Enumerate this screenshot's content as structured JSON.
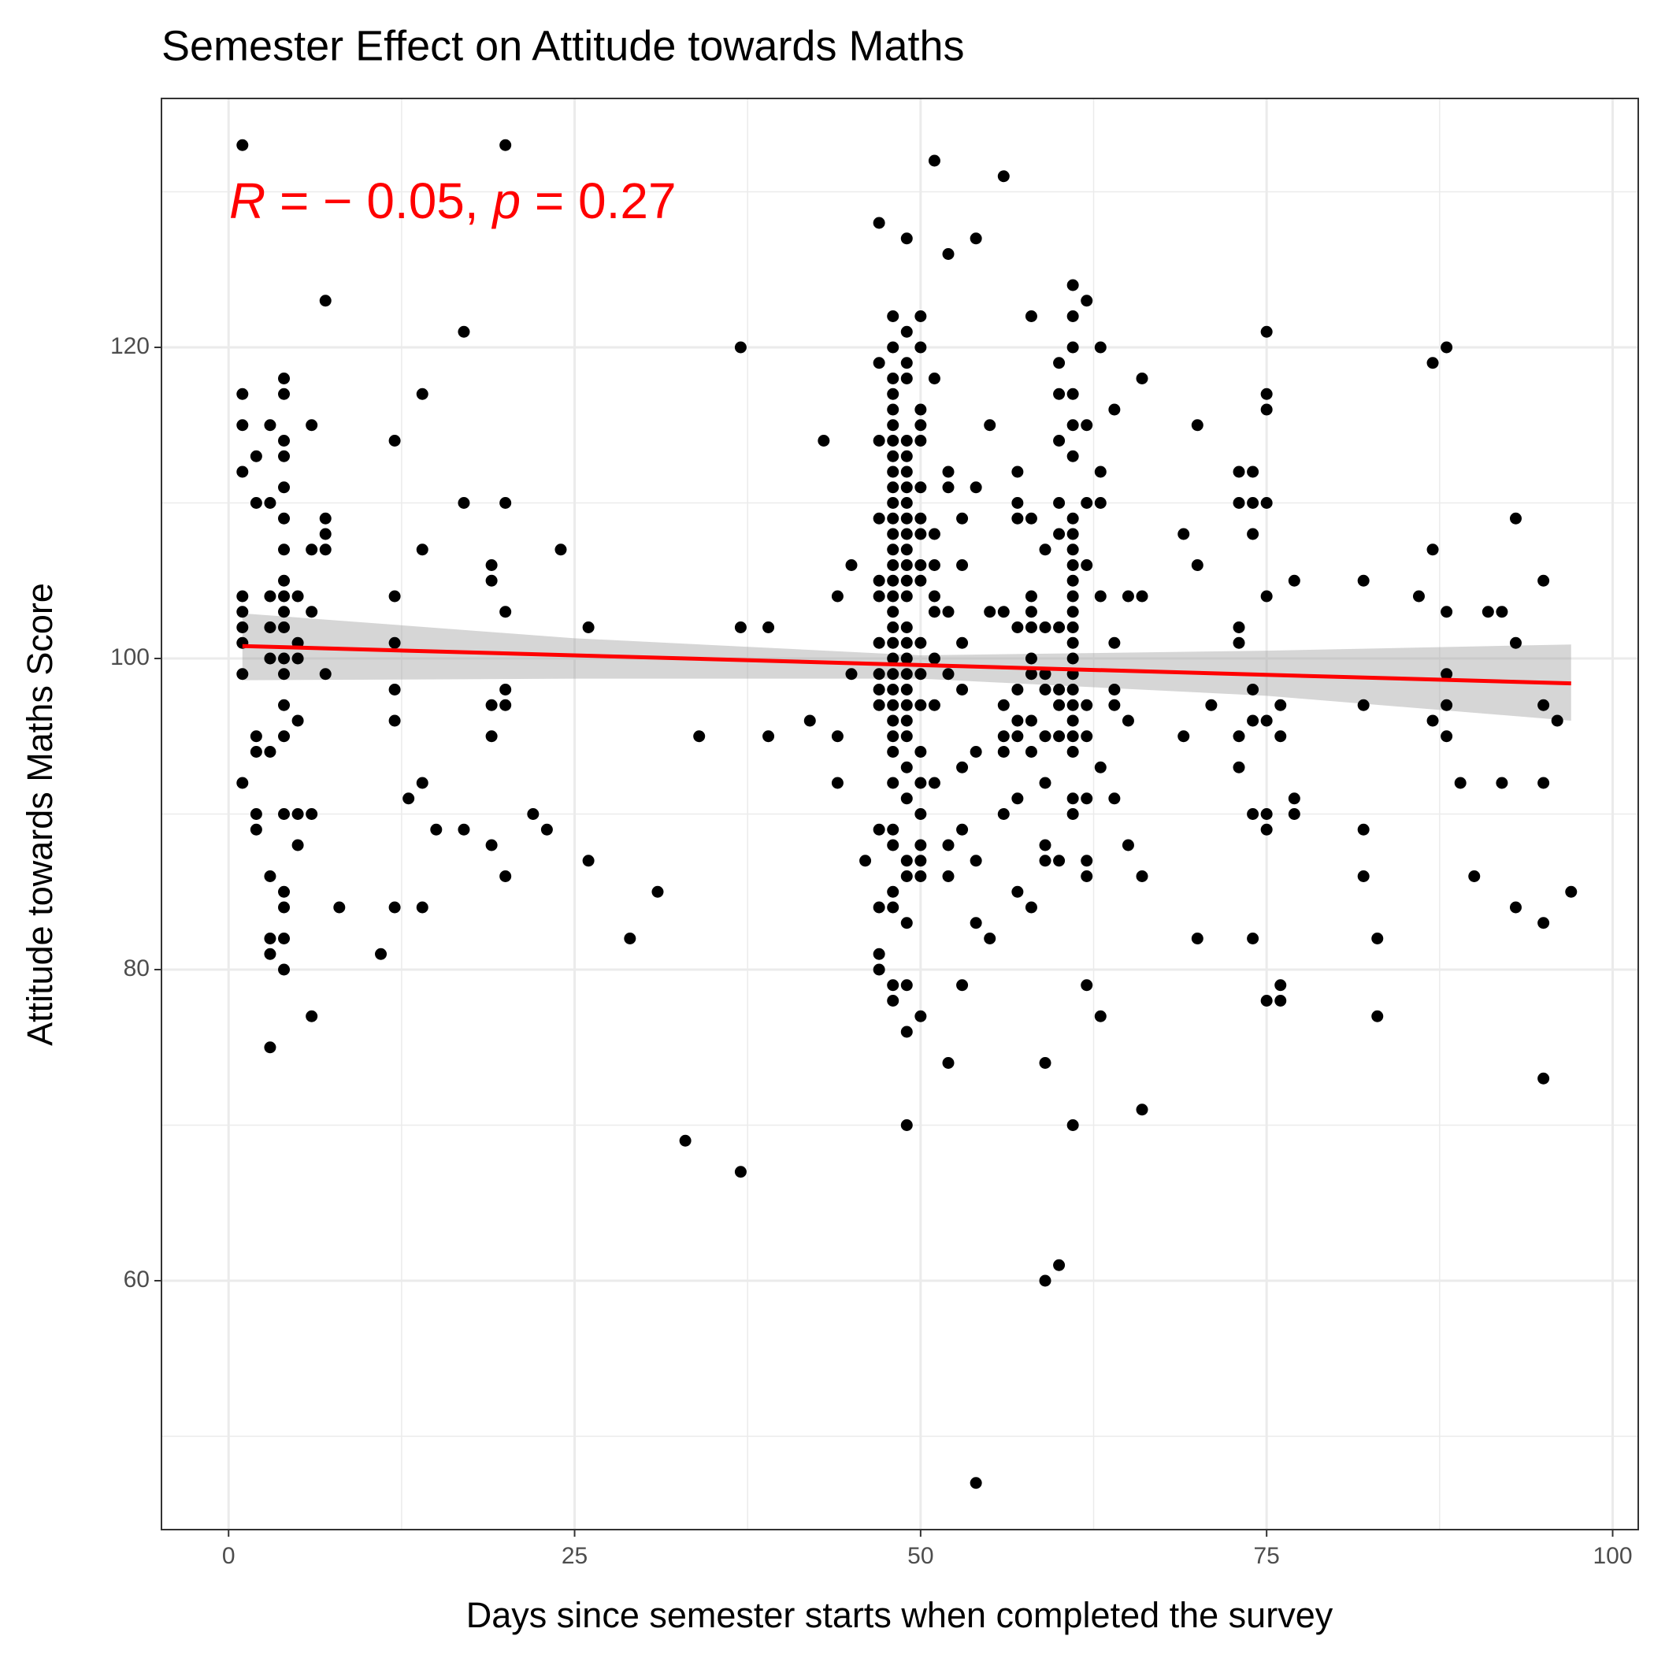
{
  "chart_data": {
    "type": "scatter",
    "title": "Semester Effect on Attitude towards Maths",
    "x_label": "Days since semester starts when completed the survey",
    "y_label": "Attitude towards Maths Score",
    "annotation": [
      {
        "text": "R",
        "italic": true
      },
      {
        "text": " = − 0.05, "
      },
      {
        "text": "p",
        "italic": true
      },
      {
        "text": " = 0.27"
      }
    ],
    "annotation_color": "#ff0000",
    "point_color": "#000000",
    "xlim": [
      -4.85,
      101.85
    ],
    "ylim": [
      44,
      136
    ],
    "xticks": [
      0,
      25,
      50,
      75,
      100
    ],
    "yticks": [
      60,
      80,
      100,
      120
    ],
    "minor_xticks": [
      12.5,
      37.5,
      62.5,
      87.5
    ],
    "minor_yticks": [
      50,
      70,
      90,
      110,
      130
    ],
    "grid": true,
    "fit": {
      "x": [
        1,
        97
      ],
      "y": [
        100.8,
        98.4
      ],
      "color": "#ff0000"
    },
    "band": {
      "x": [
        1,
        25,
        50,
        75,
        97
      ],
      "upper": [
        102.9,
        101.3,
        100.2,
        100.5,
        100.9
      ],
      "lower": [
        98.6,
        98.7,
        98.7,
        97.6,
        96.0
      ],
      "color": "#999999"
    },
    "x": [
      1,
      1,
      1,
      1,
      1,
      1,
      1,
      1,
      1,
      1,
      2,
      2,
      2,
      2,
      2,
      2,
      3,
      3,
      3,
      3,
      3,
      3,
      3,
      3,
      3,
      3,
      4,
      4,
      4,
      4,
      4,
      4,
      4,
      4,
      4,
      4,
      4,
      4,
      4,
      4,
      4,
      4,
      4,
      4,
      4,
      4,
      5,
      5,
      5,
      5,
      5,
      5,
      6,
      6,
      6,
      6,
      6,
      7,
      7,
      7,
      7,
      7,
      8,
      11,
      12,
      12,
      12,
      12,
      12,
      12,
      13,
      14,
      14,
      14,
      14,
      15,
      17,
      17,
      17,
      19,
      19,
      19,
      19,
      19,
      20,
      20,
      20,
      20,
      20,
      20,
      22,
      23,
      24,
      26,
      26,
      29,
      31,
      33,
      34,
      37,
      37,
      37,
      39,
      39,
      42,
      43,
      44,
      44,
      44,
      45,
      45,
      46,
      47,
      47,
      47,
      47,
      47,
      47,
      47,
      47,
      47,
      47,
      47,
      47,
      47,
      47,
      48,
      48,
      48,
      48,
      48,
      48,
      48,
      48,
      48,
      48,
      48,
      48,
      48,
      48,
      48,
      48,
      48,
      48,
      48,
      48,
      48,
      48,
      48,
      48,
      48,
      48,
      48,
      48,
      48,
      48,
      48,
      48,
      48,
      48,
      49,
      49,
      49,
      49,
      49,
      49,
      49,
      49,
      49,
      49,
      49,
      49,
      49,
      49,
      49,
      49,
      49,
      49,
      49,
      49,
      49,
      49,
      49,
      49,
      49,
      49,
      49,
      49,
      49,
      49,
      49,
      50,
      50,
      50,
      50,
      50,
      50,
      50,
      50,
      50,
      50,
      50,
      50,
      50,
      50,
      50,
      50,
      50,
      50,
      50,
      50,
      51,
      51,
      51,
      51,
      51,
      51,
      51,
      51,
      51,
      52,
      52,
      52,
      52,
      52,
      52,
      52,
      52,
      53,
      53,
      53,
      53,
      53,
      53,
      53,
      54,
      54,
      54,
      54,
      54,
      54,
      55,
      55,
      55,
      56,
      56,
      56,
      56,
      56,
      56,
      57,
      57,
      57,
      57,
      57,
      57,
      57,
      57,
      57,
      58,
      58,
      58,
      58,
      58,
      58,
      58,
      58,
      58,
      58,
      59,
      59,
      59,
      59,
      59,
      59,
      59,
      59,
      59,
      59,
      60,
      60,
      60,
      60,
      60,
      60,
      60,
      60,
      60,
      60,
      60,
      61,
      61,
      61,
      61,
      61,
      61,
      61,
      61,
      61,
      61,
      61,
      61,
      61,
      61,
      61,
      61,
      61,
      61,
      61,
      61,
      61,
      61,
      61,
      61,
      61,
      62,
      62,
      62,
      62,
      62,
      62,
      62,
      62,
      62,
      62,
      63,
      63,
      63,
      63,
      63,
      63,
      64,
      64,
      64,
      64,
      64,
      65,
      65,
      65,
      66,
      66,
      66,
      66,
      69,
      69,
      70,
      70,
      70,
      71,
      73,
      73,
      73,
      73,
      73,
      73,
      74,
      74,
      74,
      74,
      74,
      74,
      74,
      75,
      75,
      75,
      75,
      75,
      75,
      75,
      75,
      75,
      76,
      76,
      76,
      76,
      77,
      77,
      77,
      82,
      82,
      82,
      82,
      83,
      83,
      86,
      87,
      87,
      87,
      88,
      88,
      88,
      88,
      88,
      89,
      90,
      91,
      92,
      92,
      93,
      93,
      93,
      95,
      95,
      95,
      95,
      95,
      96,
      97
    ],
    "y": [
      133,
      117,
      115,
      112,
      104,
      103,
      102,
      101,
      99,
      92,
      113,
      110,
      95,
      94,
      90,
      89,
      115,
      110,
      104,
      102,
      100,
      94,
      86,
      82,
      81,
      75,
      118,
      117,
      114,
      113,
      111,
      109,
      107,
      105,
      104,
      103,
      102,
      100,
      99,
      97,
      95,
      90,
      85,
      84,
      82,
      80,
      104,
      101,
      100,
      96,
      90,
      88,
      115,
      107,
      103,
      90,
      77,
      123,
      109,
      108,
      107,
      99,
      84,
      81,
      114,
      104,
      101,
      98,
      96,
      84,
      91,
      117,
      107,
      92,
      84,
      89,
      121,
      110,
      89,
      106,
      105,
      97,
      95,
      88,
      133,
      110,
      103,
      98,
      97,
      86,
      90,
      89,
      107,
      102,
      87,
      82,
      85,
      69,
      95,
      120,
      102,
      67,
      102,
      95,
      96,
      114,
      104,
      95,
      92,
      106,
      99,
      87,
      128,
      119,
      114,
      109,
      105,
      104,
      101,
      99,
      98,
      97,
      89,
      84,
      81,
      80,
      122,
      120,
      118,
      117,
      116,
      115,
      114,
      113,
      112,
      111,
      110,
      109,
      108,
      107,
      106,
      105,
      104,
      103,
      102,
      101,
      100,
      99,
      98,
      97,
      96,
      95,
      94,
      92,
      89,
      88,
      85,
      84,
      79,
      78,
      127,
      121,
      119,
      118,
      114,
      113,
      112,
      111,
      110,
      109,
      108,
      107,
      106,
      105,
      104,
      102,
      101,
      100,
      99,
      98,
      97,
      96,
      95,
      93,
      91,
      87,
      86,
      83,
      79,
      76,
      70,
      122,
      120,
      116,
      115,
      114,
      111,
      109,
      108,
      106,
      105,
      101,
      99,
      97,
      94,
      92,
      90,
      88,
      87,
      86,
      77,
      132,
      118,
      108,
      106,
      104,
      103,
      100,
      97,
      92,
      126,
      112,
      111,
      103,
      99,
      88,
      86,
      74,
      109,
      106,
      101,
      98,
      93,
      89,
      79,
      127,
      111,
      94,
      87,
      83,
      47,
      115,
      103,
      82,
      131,
      103,
      97,
      95,
      94,
      90,
      112,
      110,
      109,
      102,
      98,
      96,
      95,
      91,
      85,
      122,
      109,
      104,
      103,
      102,
      100,
      99,
      96,
      94,
      84,
      107,
      102,
      99,
      98,
      95,
      92,
      88,
      87,
      74,
      60,
      119,
      117,
      114,
      110,
      108,
      102,
      98,
      97,
      95,
      87,
      61,
      124,
      122,
      120,
      117,
      115,
      113,
      109,
      108,
      107,
      106,
      105,
      104,
      103,
      102,
      101,
      100,
      99,
      98,
      97,
      96,
      95,
      94,
      91,
      90,
      70,
      123,
      115,
      110,
      106,
      97,
      95,
      91,
      87,
      86,
      79,
      120,
      112,
      110,
      104,
      93,
      77,
      116,
      101,
      98,
      97,
      91,
      104,
      96,
      88,
      118,
      104,
      86,
      71,
      108,
      95,
      115,
      106,
      82,
      97,
      112,
      110,
      102,
      101,
      95,
      93,
      112,
      110,
      108,
      98,
      96,
      90,
      82,
      121,
      117,
      116,
      110,
      104,
      96,
      90,
      89,
      78,
      97,
      95,
      79,
      78,
      105,
      91,
      90,
      105,
      97,
      89,
      86,
      82,
      77,
      104,
      119,
      107,
      96,
      120,
      103,
      99,
      97,
      95,
      92,
      86,
      103,
      103,
      92,
      109,
      101,
      84,
      105,
      97,
      92,
      83,
      73,
      96,
      85
    ]
  }
}
